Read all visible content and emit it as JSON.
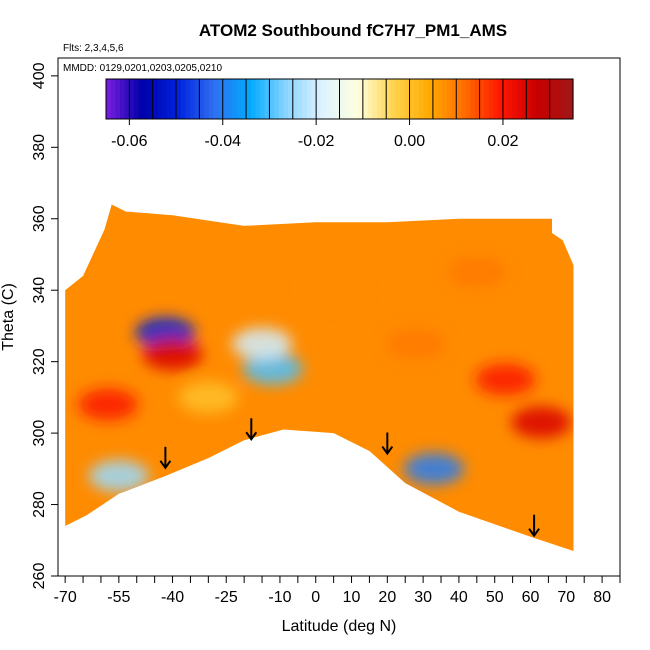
{
  "chart_data": {
    "type": "heatmap",
    "title": "ATOM2 Southbound fC7H7_PM1_AMS",
    "flights_note": "Flts: 2,3,4,5,6",
    "dates_note": "MMDD: 0129,0201,0203,0205,0210",
    "xlabel": "Latitude (deg N)",
    "ylabel": "Theta (C)",
    "xlim": [
      -72,
      85
    ],
    "ylim": [
      260,
      405
    ],
    "x_ticks": [
      -70,
      -55,
      -40,
      -25,
      -10,
      0,
      10,
      20,
      30,
      40,
      50,
      60,
      70,
      80
    ],
    "x_tick_labels": [
      "-70",
      "-55",
      "-40",
      "-25",
      "-10",
      "0",
      "10",
      "20",
      "30",
      "40",
      "50",
      "60",
      "70",
      "80"
    ],
    "x_minor_ticks": [
      -65,
      -60,
      -50,
      -45,
      -35,
      -30,
      -20,
      -15,
      -5,
      5,
      15,
      25,
      35,
      45,
      55,
      65,
      75,
      85
    ],
    "y_ticks": [
      260,
      280,
      300,
      320,
      340,
      360,
      380,
      400
    ],
    "y_tick_labels": [
      "260",
      "280",
      "300",
      "320",
      "340",
      "360",
      "380",
      "400"
    ],
    "colorbar": {
      "range": [
        -0.065,
        0.035
      ],
      "ticks": [
        -0.06,
        -0.04,
        -0.02,
        0.0,
        0.02
      ],
      "tick_labels": [
        "-0.06",
        "-0.04",
        "-0.02",
        "0.00",
        "0.02"
      ],
      "colors": [
        "#7b1fe0",
        "#0000aa",
        "#0022dd",
        "#2f6ff0",
        "#00aaff",
        "#88d4ff",
        "#ddf2ff",
        "#ffffe0",
        "#ffd34d",
        "#ffaa00",
        "#ff6a00",
        "#ff1500",
        "#c80000",
        "#a01818"
      ]
    },
    "data_envelope": {
      "top": [
        [
          -70,
          340
        ],
        [
          -65,
          344
        ],
        [
          -59,
          357
        ],
        [
          -57,
          364
        ],
        [
          -53,
          362
        ],
        [
          -40,
          361
        ],
        [
          -20,
          358
        ],
        [
          0,
          359
        ],
        [
          20,
          359
        ],
        [
          40,
          360
        ],
        [
          60,
          360
        ],
        [
          66,
          360
        ],
        [
          66,
          356
        ],
        [
          69,
          354
        ],
        [
          72,
          347
        ],
        [
          72,
          340
        ]
      ],
      "bottom": [
        [
          72,
          267
        ],
        [
          60,
          271
        ],
        [
          40,
          278
        ],
        [
          25,
          286
        ],
        [
          15,
          295
        ],
        [
          5,
          300
        ],
        [
          -9,
          301
        ],
        [
          -20,
          298
        ],
        [
          -30,
          293
        ],
        [
          -42,
          288
        ],
        [
          -55,
          283
        ],
        [
          -64,
          277
        ],
        [
          -70,
          274
        ]
      ]
    },
    "regions": [
      {
        "lat": -55,
        "theta": 288,
        "value": -0.025
      },
      {
        "lat": -42,
        "theta": 328,
        "value": -0.05
      },
      {
        "lat": -40,
        "theta": 322,
        "value": 0.025
      },
      {
        "lat": -58,
        "theta": 308,
        "value": 0.02
      },
      {
        "lat": -12,
        "theta": 318,
        "value": -0.03
      },
      {
        "lat": -15,
        "theta": 325,
        "value": -0.02
      },
      {
        "lat": 33,
        "theta": 290,
        "value": -0.04
      },
      {
        "lat": 28,
        "theta": 325,
        "value": 0.01
      },
      {
        "lat": 53,
        "theta": 315,
        "value": 0.02
      },
      {
        "lat": 63,
        "theta": 303,
        "value": 0.025
      },
      {
        "lat": 5,
        "theta": 340,
        "value": 0.008
      },
      {
        "lat": -30,
        "theta": 310,
        "value": 0.0
      },
      {
        "lat": 45,
        "theta": 345,
        "value": 0.01
      }
    ],
    "annotations": [
      {
        "type": "arrow",
        "lat": -42,
        "theta": 290
      },
      {
        "type": "arrow",
        "lat": -18,
        "theta": 298
      },
      {
        "type": "arrow",
        "lat": 20,
        "theta": 294
      },
      {
        "type": "arrow",
        "lat": 61,
        "theta": 271
      }
    ]
  }
}
